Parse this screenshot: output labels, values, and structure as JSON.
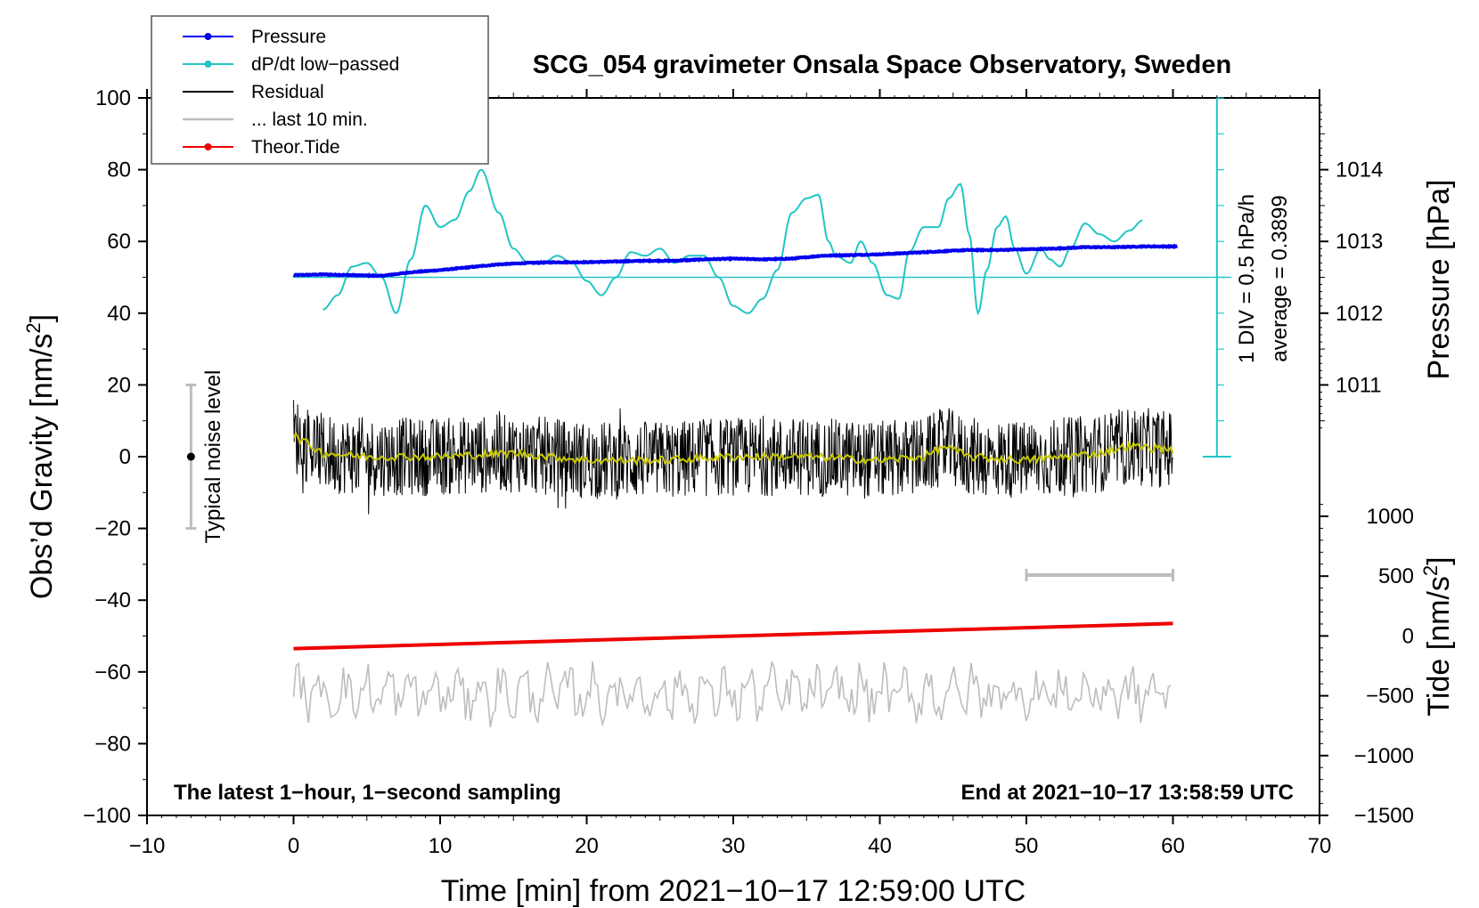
{
  "chart_data": {
    "type": "line",
    "title": "SCG_054 gravimeter Onsala Space Observatory, Sweden",
    "xlabel": "Time [min] from 2021−10−17 12:59:00 UTC",
    "ylabel_prefix": "Obs’d Gravity [nm/s",
    "ylabel_sup": "2",
    "ylabel_suffix": "]",
    "y2label": "Pressure [hPa]",
    "y3label_prefix": "Tide [nm/s",
    "y3label_sup": "2",
    "y3label_suffix": "]",
    "xlim": [
      -10,
      70
    ],
    "ylim": [
      -100,
      100
    ],
    "xticks": [
      "−10",
      "0",
      "10",
      "20",
      "30",
      "40",
      "50",
      "60",
      "70"
    ],
    "yticks": [
      "−100",
      "−80",
      "−60",
      "−40",
      "−20",
      "0",
      "20",
      "40",
      "60",
      "80",
      "100"
    ],
    "pressure_ticks": [
      "1011",
      "1012",
      "1013",
      "1014"
    ],
    "pressure_tick_values": [
      1011,
      1012,
      1013,
      1014
    ],
    "tide_ticks": [
      "−1500",
      "−1000",
      "−500",
      "0",
      "500",
      "1000"
    ],
    "tide_tick_values": [
      -1500,
      -1000,
      -500,
      0,
      500,
      1000
    ],
    "legend": [
      {
        "label": "Pressure",
        "color": "#0000ee",
        "marker": true
      },
      {
        "label": "dP/dt low−passed",
        "color": "#22c5c5",
        "marker": true
      },
      {
        "label": "Residual",
        "color": "#000000",
        "marker": false
      },
      {
        "label": "... last 10 min.",
        "color": "#bdbdbd",
        "marker": false
      },
      {
        "label": "Theor.Tide",
        "color": "#ee0000",
        "marker": true
      }
    ],
    "annotations": {
      "bottom_left": "The latest 1−hour, 1−second sampling",
      "bottom_right": "End at 2021−10−17 13:58:59 UTC",
      "noise": "Typical noise level",
      "div_scale": "1 DIV = 0.5 hPa/h",
      "average": "average = 0.3899"
    },
    "colors": {
      "pressure": "#0000ee",
      "dpdt": "#22c5c5",
      "residual": "#000000",
      "residual_smooth": "#c8c800",
      "last10": "#bdbdbd",
      "tide": "#ee0000",
      "noise_bar": "#bdbdbd"
    },
    "series": [
      {
        "name": "Pressure",
        "unit": "hPa",
        "x": [
          0,
          2,
          4,
          6,
          8,
          10,
          12,
          14,
          16,
          18,
          20,
          22,
          24,
          26,
          28,
          30,
          32,
          34,
          36,
          38,
          40,
          42,
          44,
          46,
          48,
          50,
          52,
          54,
          56,
          58,
          60
        ],
        "y": [
          1012.53,
          1012.54,
          1012.53,
          1012.52,
          1012.57,
          1012.6,
          1012.64,
          1012.68,
          1012.7,
          1012.71,
          1012.71,
          1012.72,
          1012.73,
          1012.73,
          1012.75,
          1012.76,
          1012.75,
          1012.76,
          1012.8,
          1012.81,
          1012.82,
          1012.84,
          1012.86,
          1012.88,
          1012.88,
          1012.89,
          1012.9,
          1012.92,
          1012.92,
          1012.93,
          1012.93
        ]
      },
      {
        "name": "dP/dt low−passed",
        "unit": "nm/s2 (plot scale)",
        "x": [
          2,
          3,
          4,
          5,
          6,
          7,
          8,
          9,
          10,
          11,
          12,
          12.8,
          14,
          15,
          16,
          17,
          18,
          19,
          20,
          21,
          22,
          23,
          24,
          25,
          26,
          27,
          28,
          29,
          30,
          31,
          32,
          33,
          34,
          35,
          35.8,
          36.5,
          37,
          38,
          38.7,
          39.5,
          40.5,
          41.3,
          42,
          43,
          44,
          44.7,
          45.5,
          46.1,
          46.7,
          47.3,
          48,
          48.6,
          49.2,
          50,
          51,
          51.6,
          52.3,
          53,
          54,
          55,
          56,
          57,
          58
        ],
        "y": [
          41,
          45,
          53,
          54,
          50,
          40,
          55,
          70,
          64,
          66,
          74,
          80,
          68,
          58,
          54,
          54,
          56,
          54,
          49,
          45,
          50,
          57,
          56,
          58,
          54,
          56,
          56,
          50,
          42,
          40,
          44,
          52,
          68,
          72,
          73,
          60,
          56,
          54,
          60,
          54,
          45,
          44,
          57,
          64,
          64,
          72,
          76,
          62,
          40,
          52,
          64,
          67,
          58,
          51,
          58,
          55,
          53,
          58,
          65,
          62,
          60,
          63,
          66
        ]
      },
      {
        "name": "Residual",
        "unit": "nm/s2",
        "x": [
          0,
          60
        ],
        "y_mean": [
          0,
          2
        ],
        "amplitude_range": [
          -17,
          21
        ]
      },
      {
        "name": "Residual (smoothed)",
        "unit": "nm/s2",
        "x": [
          0,
          2,
          5,
          10,
          15,
          20,
          25,
          30,
          35,
          40,
          43,
          44.5,
          46,
          50,
          55,
          57,
          60
        ],
        "y": [
          6,
          1,
          0,
          0,
          1,
          -1,
          -1,
          0,
          0,
          -1,
          0,
          3,
          0,
          -1,
          1,
          3,
          2
        ]
      },
      {
        "name": "... last 10 min.",
        "unit": "nm/s2",
        "x": [
          0,
          60
        ],
        "y_mean": [
          -67,
          -67
        ],
        "amplitude_range": [
          -76,
          -49
        ]
      },
      {
        "name": "Theor.Tide",
        "unit": "nm/s2",
        "x": [
          0,
          60
        ],
        "y": [
          -53.5,
          -46.5
        ]
      }
    ],
    "noise_level": {
      "x": -7,
      "center": 0,
      "low": -20,
      "high": 20
    },
    "last10_scale_bar": {
      "x_start": 50,
      "x_end": 60,
      "y": -33
    },
    "pressure_average_line": 50,
    "div_axis_x": 63
  }
}
